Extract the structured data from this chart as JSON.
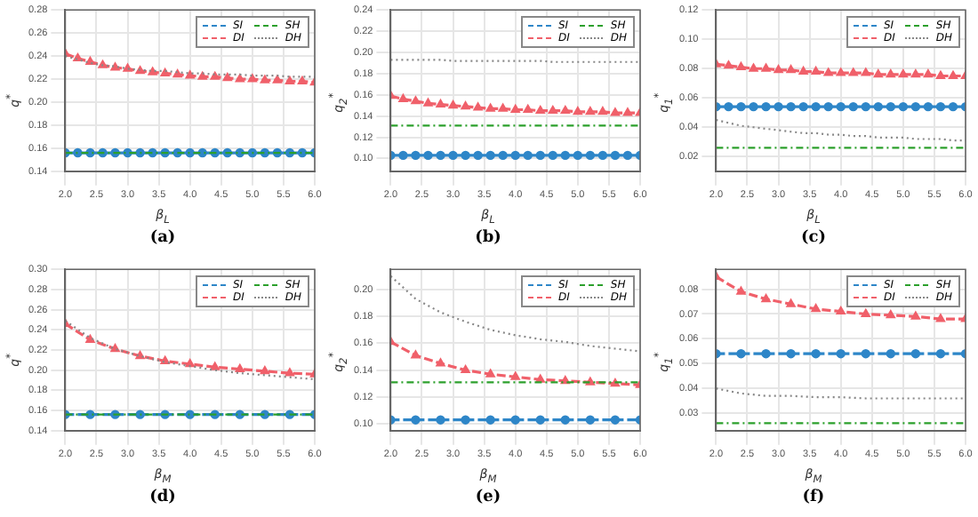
{
  "chart_data": [
    {
      "type": "line",
      "title": "(a)",
      "xlabel": "β$_{L}$",
      "ylabel": "q$^{*}$",
      "x": [
        2.0,
        2.2,
        2.4,
        2.6,
        2.8,
        3.0,
        3.2,
        3.4,
        3.6,
        3.8,
        4.0,
        4.2,
        4.4,
        4.6,
        4.8,
        5.0,
        5.2,
        5.4,
        5.6,
        5.8,
        6.0
      ],
      "xlim": [
        2,
        6
      ],
      "xticks": [
        {
          "value": 2,
          "label": "2.0"
        },
        2.5,
        {
          "value": 3,
          "label": "3.0"
        },
        3.5,
        {
          "value": 4,
          "label": "4.0"
        },
        4.5,
        {
          "value": 5,
          "label": "5.0"
        },
        5.5,
        {
          "value": 6,
          "label": "6.0"
        }
      ],
      "ylim": [
        0.14,
        0.28
      ],
      "yticks": [
        0.14,
        0.16,
        0.18,
        {
          "value": 0.2,
          "label": "0.20"
        },
        0.22,
        0.24,
        0.26,
        0.28
      ],
      "grid": true,
      "legend": "top right",
      "series": [
        {
          "name": "SI",
          "color": "#2e86c8",
          "marker": "circle",
          "line_style": "dashed",
          "values": [
            0.156,
            0.156,
            0.156,
            0.156,
            0.156,
            0.156,
            0.156,
            0.156,
            0.156,
            0.156,
            0.156,
            0.156,
            0.156,
            0.156,
            0.156,
            0.156,
            0.156,
            0.156,
            0.156,
            0.156,
            0.156
          ]
        },
        {
          "name": "SH",
          "color": "#2ca02c",
          "marker": "none",
          "line_style": "dashed",
          "values": [
            0.156,
            0.156,
            0.156,
            0.156,
            0.156,
            0.156,
            0.156,
            0.156,
            0.156,
            0.156,
            0.156,
            0.156,
            0.156,
            0.156,
            0.156,
            0.156,
            0.156,
            0.156,
            0.156,
            0.156,
            0.156
          ]
        },
        {
          "name": "DI",
          "color": "#f0606a",
          "marker": "triangle",
          "line_style": "dashed",
          "values": [
            0.242,
            0.238,
            0.235,
            0.232,
            0.23,
            0.229,
            0.227,
            0.226,
            0.225,
            0.224,
            0.223,
            0.222,
            0.222,
            0.221,
            0.22,
            0.22,
            0.219,
            0.219,
            0.218,
            0.218,
            0.217
          ]
        },
        {
          "name": "DH",
          "color": "#888888",
          "marker": "none",
          "line_style": "dotted",
          "values": [
            0.24,
            0.237,
            0.234,
            0.232,
            0.231,
            0.229,
            0.228,
            0.227,
            0.227,
            0.226,
            0.225,
            0.225,
            0.224,
            0.224,
            0.224,
            0.223,
            0.223,
            0.223,
            0.222,
            0.222,
            0.222
          ]
        }
      ]
    },
    {
      "type": "line",
      "title": "(b)",
      "xlabel": "β$_{L}$",
      "ylabel": "q$_{2}$$^{*}$",
      "x": [
        2.0,
        2.2,
        2.4,
        2.6,
        2.8,
        3.0,
        3.2,
        3.4,
        3.6,
        3.8,
        4.0,
        4.2,
        4.4,
        4.6,
        4.8,
        5.0,
        5.2,
        5.4,
        5.6,
        5.8,
        6.0
      ],
      "xlim": [
        2,
        6
      ],
      "xticks": [
        {
          "value": 2,
          "label": "2.0"
        },
        2.5,
        {
          "value": 3,
          "label": "3.0"
        },
        3.5,
        {
          "value": 4,
          "label": "4.0"
        },
        4.5,
        {
          "value": 5,
          "label": "5.0"
        },
        5.5,
        {
          "value": 6,
          "label": "6.0"
        }
      ],
      "ylim": [
        0.088,
        0.24
      ],
      "yticks": [
        {
          "value": 0.1,
          "label": "0.10"
        },
        0.12,
        0.14,
        0.16,
        0.18,
        {
          "value": 0.2,
          "label": "0.20"
        },
        0.22,
        0.24
      ],
      "grid": true,
      "legend": "top right",
      "series": [
        {
          "name": "SI",
          "color": "#2e86c8",
          "marker": "circle",
          "line_style": "dashed",
          "values": [
            0.103,
            0.103,
            0.103,
            0.103,
            0.103,
            0.103,
            0.103,
            0.103,
            0.103,
            0.103,
            0.103,
            0.103,
            0.103,
            0.103,
            0.103,
            0.103,
            0.103,
            0.103,
            0.103,
            0.103,
            0.103
          ]
        },
        {
          "name": "SH",
          "color": "#2ca02c",
          "marker": "none",
          "line_style": "dashed",
          "values": [
            0.131,
            0.131,
            0.131,
            0.131,
            0.131,
            0.131,
            0.131,
            0.131,
            0.131,
            0.131,
            0.131,
            0.131,
            0.131,
            0.131,
            0.131,
            0.131,
            0.131,
            0.131,
            0.131,
            0.131,
            0.131
          ]
        },
        {
          "name": "DI",
          "color": "#f0606a",
          "marker": "triangle",
          "line_style": "dashed",
          "values": [
            0.159,
            0.156,
            0.154,
            0.152,
            0.151,
            0.15,
            0.149,
            0.148,
            0.147,
            0.147,
            0.146,
            0.146,
            0.145,
            0.145,
            0.145,
            0.144,
            0.144,
            0.144,
            0.143,
            0.143,
            0.143
          ]
        },
        {
          "name": "DH",
          "color": "#888888",
          "marker": "none",
          "line_style": "dotted",
          "values": [
            0.193,
            0.193,
            0.193,
            0.193,
            0.193,
            0.192,
            0.192,
            0.192,
            0.192,
            0.192,
            0.192,
            0.192,
            0.192,
            0.191,
            0.191,
            0.191,
            0.191,
            0.191,
            0.191,
            0.191,
            0.191
          ]
        }
      ]
    },
    {
      "type": "line",
      "title": "(c)",
      "xlabel": "β$_{L}$",
      "ylabel": "q$_{1}$$^{*}$",
      "x": [
        2.0,
        2.2,
        2.4,
        2.6,
        2.8,
        3.0,
        3.2,
        3.4,
        3.6,
        3.8,
        4.0,
        4.2,
        4.4,
        4.6,
        4.8,
        5.0,
        5.2,
        5.4,
        5.6,
        5.8,
        6.0
      ],
      "xlim": [
        2,
        6
      ],
      "xticks": [
        {
          "value": 2,
          "label": "2.0"
        },
        2.5,
        {
          "value": 3,
          "label": "3.0"
        },
        3.5,
        {
          "value": 4,
          "label": "4.0"
        },
        4.5,
        {
          "value": 5,
          "label": "5.0"
        },
        5.5,
        {
          "value": 6,
          "label": "6.0"
        }
      ],
      "ylim": [
        0.01,
        0.12
      ],
      "yticks": [
        0.02,
        0.04,
        0.06,
        0.08,
        {
          "value": 0.1,
          "label": "0.10"
        },
        0.12
      ],
      "grid": true,
      "legend": "top right",
      "series": [
        {
          "name": "SI",
          "color": "#2e86c8",
          "marker": "circle",
          "line_style": "dashed",
          "values": [
            0.054,
            0.054,
            0.054,
            0.054,
            0.054,
            0.054,
            0.054,
            0.054,
            0.054,
            0.054,
            0.054,
            0.054,
            0.054,
            0.054,
            0.054,
            0.054,
            0.054,
            0.054,
            0.054,
            0.054,
            0.054
          ]
        },
        {
          "name": "SH",
          "color": "#2ca02c",
          "marker": "none",
          "line_style": "dashed",
          "values": [
            0.026,
            0.026,
            0.026,
            0.026,
            0.026,
            0.026,
            0.026,
            0.026,
            0.026,
            0.026,
            0.026,
            0.026,
            0.026,
            0.026,
            0.026,
            0.026,
            0.026,
            0.026,
            0.026,
            0.026,
            0.026
          ]
        },
        {
          "name": "DI",
          "color": "#f0606a",
          "marker": "triangle",
          "line_style": "dashed",
          "values": [
            0.083,
            0.082,
            0.081,
            0.08,
            0.08,
            0.079,
            0.079,
            0.078,
            0.078,
            0.077,
            0.077,
            0.077,
            0.077,
            0.076,
            0.076,
            0.076,
            0.076,
            0.076,
            0.075,
            0.075,
            0.075
          ]
        },
        {
          "name": "DH",
          "color": "#888888",
          "marker": "none",
          "line_style": "dotted",
          "values": [
            0.045,
            0.043,
            0.041,
            0.04,
            0.039,
            0.038,
            0.037,
            0.036,
            0.036,
            0.035,
            0.035,
            0.034,
            0.034,
            0.033,
            0.033,
            0.033,
            0.032,
            0.032,
            0.032,
            0.031,
            0.031
          ]
        }
      ]
    },
    {
      "type": "line",
      "title": "(d)",
      "xlabel": "β$_{M}$",
      "ylabel": "q$^{*}$",
      "x": [
        2.0,
        2.4,
        2.8,
        3.2,
        3.6,
        4.0,
        4.4,
        4.8,
        5.2,
        5.6,
        6.0
      ],
      "xlim": [
        2,
        6
      ],
      "xticks": [
        {
          "value": 2,
          "label": "2.0"
        },
        2.5,
        {
          "value": 3,
          "label": "3.0"
        },
        3.5,
        {
          "value": 4,
          "label": "4.0"
        },
        4.5,
        {
          "value": 5,
          "label": "5.0"
        },
        5.5,
        {
          "value": 6,
          "label": "6.0"
        }
      ],
      "ylim": [
        0.14,
        0.3
      ],
      "yticks": [
        0.14,
        0.16,
        0.18,
        {
          "value": 0.2,
          "label": "0.20"
        },
        0.22,
        0.24,
        0.26,
        0.28,
        {
          "value": 0.3,
          "label": "0.30"
        }
      ],
      "grid": true,
      "legend": "top right",
      "series": [
        {
          "name": "SI",
          "color": "#2e86c8",
          "marker": "circle",
          "line_style": "dashed",
          "values": [
            0.156,
            0.156,
            0.156,
            0.156,
            0.156,
            0.156,
            0.156,
            0.156,
            0.156,
            0.156,
            0.156
          ]
        },
        {
          "name": "SH",
          "color": "#2ca02c",
          "marker": "none",
          "line_style": "dashed",
          "values": [
            0.156,
            0.156,
            0.156,
            0.156,
            0.156,
            0.156,
            0.156,
            0.156,
            0.156,
            0.156,
            0.156
          ]
        },
        {
          "name": "DI",
          "color": "#f0606a",
          "marker": "triangle",
          "line_style": "dashed",
          "values": [
            0.246,
            0.23,
            0.221,
            0.214,
            0.209,
            0.206,
            0.203,
            0.201,
            0.199,
            0.197,
            0.196
          ]
        },
        {
          "name": "DH",
          "color": "#888888",
          "marker": "none",
          "line_style": "dotted",
          "values": [
            0.249,
            0.232,
            0.221,
            0.214,
            0.208,
            0.204,
            0.2,
            0.197,
            0.195,
            0.193,
            0.191
          ]
        }
      ]
    },
    {
      "type": "line",
      "title": "(e)",
      "xlabel": "β$_{M}$",
      "ylabel": "q$_{2}$$^{*}$",
      "x": [
        2.0,
        2.4,
        2.8,
        3.2,
        3.6,
        4.0,
        4.4,
        4.8,
        5.2,
        5.6,
        6.0
      ],
      "xlim": [
        2,
        6
      ],
      "xticks": [
        {
          "value": 2,
          "label": "2.0"
        },
        2.5,
        {
          "value": 3,
          "label": "3.0"
        },
        3.5,
        {
          "value": 4,
          "label": "4.0"
        },
        4.5,
        {
          "value": 5,
          "label": "5.0"
        },
        5.5,
        {
          "value": 6,
          "label": "6.0"
        }
      ],
      "ylim": [
        0.095,
        0.215
      ],
      "yticks": [
        {
          "value": 0.1,
          "label": "0.10"
        },
        0.12,
        0.14,
        0.16,
        0.18,
        {
          "value": 0.2,
          "label": "0.20"
        }
      ],
      "grid": true,
      "legend": "top right",
      "series": [
        {
          "name": "SI",
          "color": "#2e86c8",
          "marker": "circle",
          "line_style": "dashed",
          "values": [
            0.103,
            0.103,
            0.103,
            0.103,
            0.103,
            0.103,
            0.103,
            0.103,
            0.103,
            0.103,
            0.103
          ]
        },
        {
          "name": "SH",
          "color": "#2ca02c",
          "marker": "none",
          "line_style": "dashed",
          "values": [
            0.131,
            0.131,
            0.131,
            0.131,
            0.131,
            0.131,
            0.131,
            0.131,
            0.131,
            0.131,
            0.131
          ]
        },
        {
          "name": "DI",
          "color": "#f0606a",
          "marker": "triangle",
          "line_style": "dashed",
          "values": [
            0.161,
            0.151,
            0.145,
            0.14,
            0.137,
            0.135,
            0.133,
            0.132,
            0.131,
            0.13,
            0.129
          ]
        },
        {
          "name": "DH",
          "color": "#888888",
          "marker": "none",
          "line_style": "dotted",
          "values": [
            0.21,
            0.193,
            0.183,
            0.176,
            0.17,
            0.166,
            0.163,
            0.161,
            0.158,
            0.156,
            0.154
          ]
        }
      ]
    },
    {
      "type": "line",
      "title": "(f)",
      "xlabel": "β$_{M}$",
      "ylabel": "q$_{1}$$^{*}$",
      "x": [
        2.0,
        2.4,
        2.8,
        3.2,
        3.6,
        4.0,
        4.4,
        4.8,
        5.2,
        5.6,
        6.0
      ],
      "xlim": [
        2,
        6
      ],
      "xticks": [
        {
          "value": 2,
          "label": "2.0"
        },
        2.5,
        {
          "value": 3,
          "label": "3.0"
        },
        3.5,
        {
          "value": 4,
          "label": "4.0"
        },
        4.5,
        {
          "value": 5,
          "label": "5.0"
        },
        5.5,
        {
          "value": 6,
          "label": "6.0"
        }
      ],
      "ylim": [
        0.023,
        0.088
      ],
      "yticks": [
        0.03,
        0.04,
        0.05,
        0.06,
        0.07,
        0.08
      ],
      "grid": true,
      "legend": "top right",
      "series": [
        {
          "name": "SI",
          "color": "#2e86c8",
          "marker": "circle",
          "line_style": "dashed",
          "values": [
            0.054,
            0.054,
            0.054,
            0.054,
            0.054,
            0.054,
            0.054,
            0.054,
            0.054,
            0.054,
            0.054
          ]
        },
        {
          "name": "SH",
          "color": "#2ca02c",
          "marker": "none",
          "line_style": "dashed",
          "values": [
            0.026,
            0.026,
            0.026,
            0.026,
            0.026,
            0.026,
            0.026,
            0.026,
            0.026,
            0.026,
            0.026
          ]
        },
        {
          "name": "DI",
          "color": "#f0606a",
          "marker": "triangle",
          "line_style": "dashed",
          "values": [
            0.085,
            0.079,
            0.076,
            0.074,
            0.072,
            0.071,
            0.07,
            0.0695,
            0.069,
            0.068,
            0.068
          ]
        },
        {
          "name": "DH",
          "color": "#888888",
          "marker": "none",
          "line_style": "dotted",
          "values": [
            0.04,
            0.038,
            0.037,
            0.037,
            0.0365,
            0.0365,
            0.036,
            0.036,
            0.036,
            0.036,
            0.036
          ]
        }
      ]
    }
  ]
}
